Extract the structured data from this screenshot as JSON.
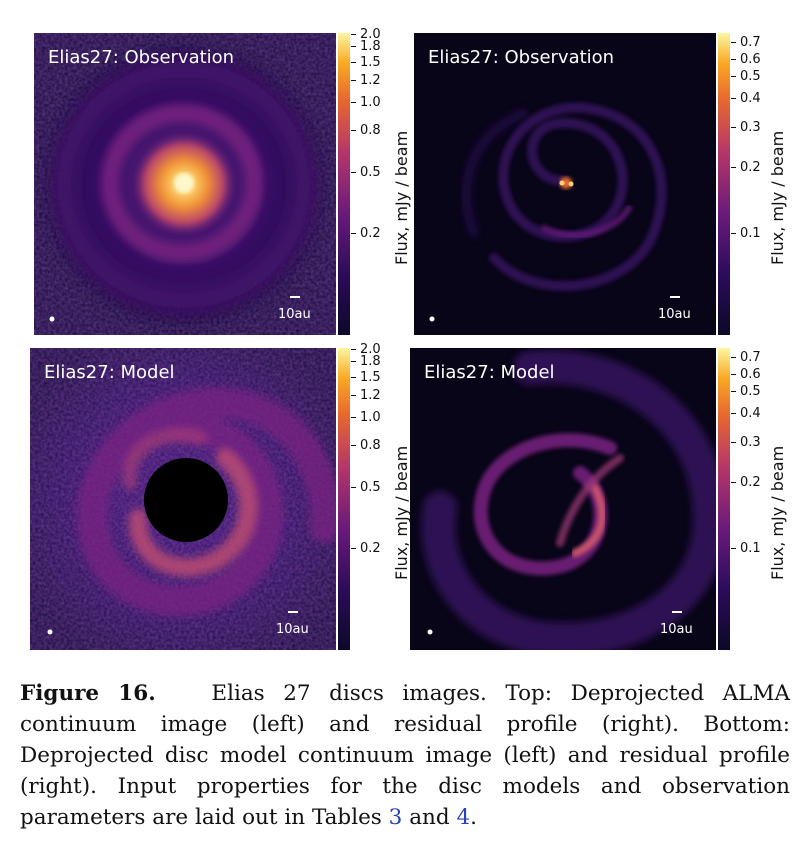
{
  "panels": [
    {
      "title": "Elias27: Observation",
      "scale_label": "10au"
    },
    {
      "title": "Elias27: Observation",
      "scale_label": "10au"
    },
    {
      "title": "Elias27: Model",
      "scale_label": "10au"
    },
    {
      "title": "Elias27: Model",
      "scale_label": "10au"
    }
  ],
  "colorbars": {
    "left": {
      "label": "Flux, mJy / beam",
      "ticks": [
        "2.0",
        "1.8",
        "1.5",
        "1.2",
        "1.0",
        "0.8",
        "0.5",
        "0.2"
      ]
    },
    "right": {
      "label": "Flux, mJy / beam",
      "ticks": [
        "0.7",
        "0.6",
        "0.5",
        "0.4",
        "0.3",
        "0.2",
        "0.1"
      ]
    }
  },
  "caption": {
    "label": "Figure 16.",
    "text": "Elias 27 discs images. Top: Deprojected ALMA continuum image (left) and residual profile (right). Bottom: Deprojected disc model continuum image (left) and residual profile (right). Input properties for the disc models and observation parameters are laid out in Tables",
    "ref1": "3",
    "and": "and",
    "ref2": "4",
    "end": "."
  },
  "colors": {
    "background": "#0b0624",
    "colormap": "inferno",
    "link": "#2a3fb8"
  }
}
